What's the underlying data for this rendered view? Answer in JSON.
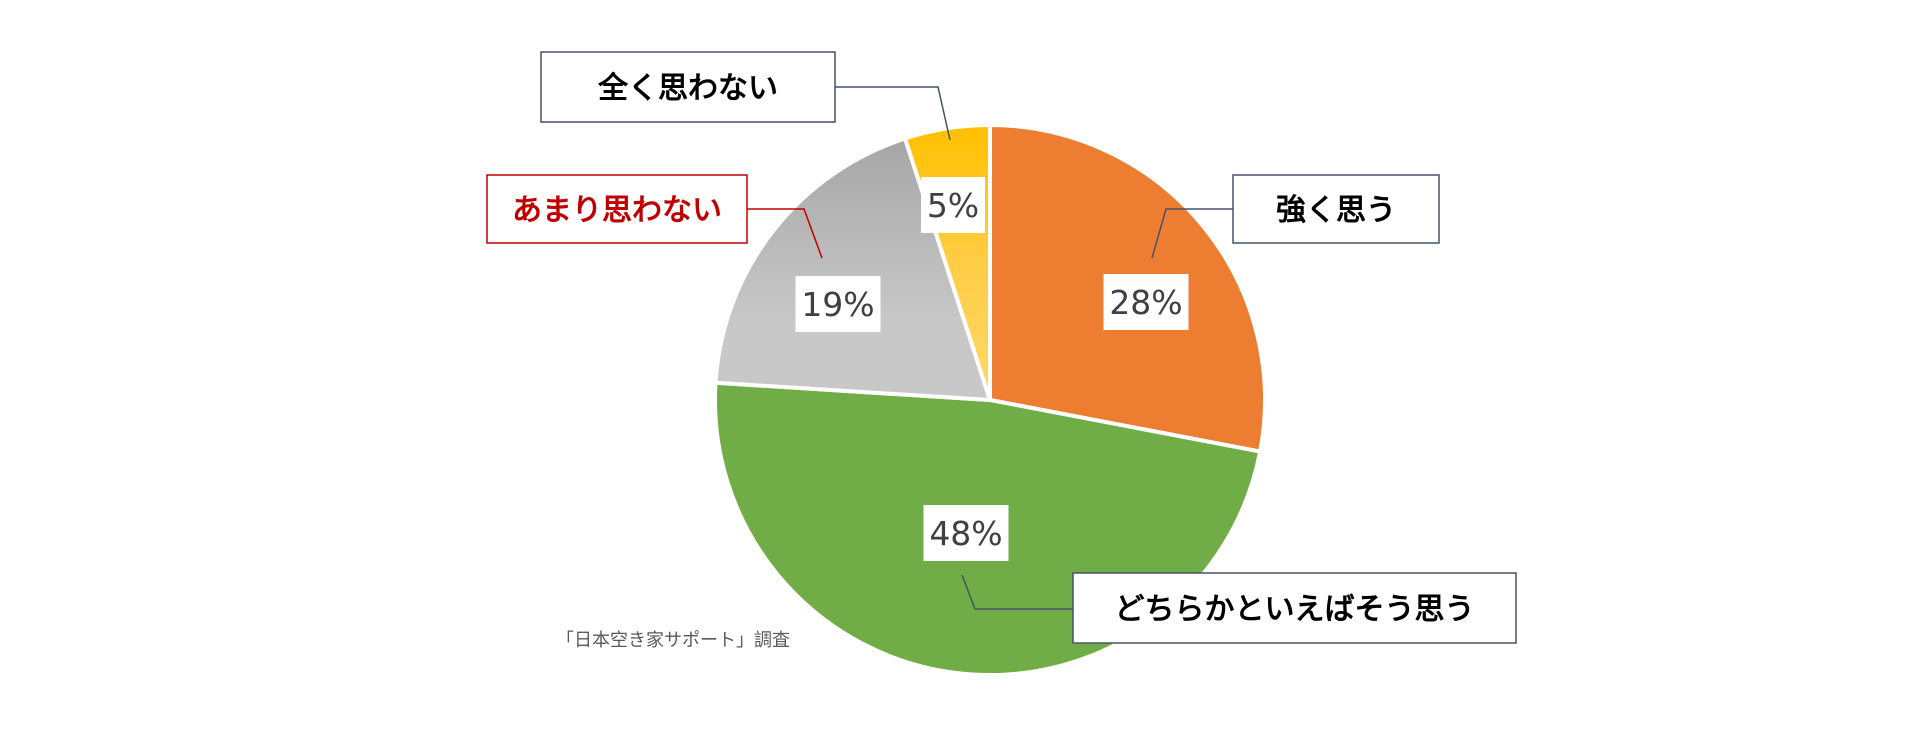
{
  "chart_data": {
    "type": "pie",
    "start_angle_deg": 0,
    "direction": "clockwise",
    "slices": [
      {
        "category": "強く思う",
        "value": 28,
        "label": "28%",
        "color": "#ed7d31",
        "category_color": "#000000"
      },
      {
        "category": "どちらかといえばそう思う",
        "value": 48,
        "label": "48%",
        "color": "#70ad47",
        "category_color": "#000000"
      },
      {
        "category": "あまり思わない",
        "value": 19,
        "label": "19%",
        "color": "#bfbfbf",
        "category_color": "#c00000"
      },
      {
        "category": "全く思わない",
        "value": 5,
        "label": "5%",
        "color": "#ffc000",
        "category_color": "#000000"
      }
    ]
  },
  "source": "「日本空き家サポート」調査"
}
